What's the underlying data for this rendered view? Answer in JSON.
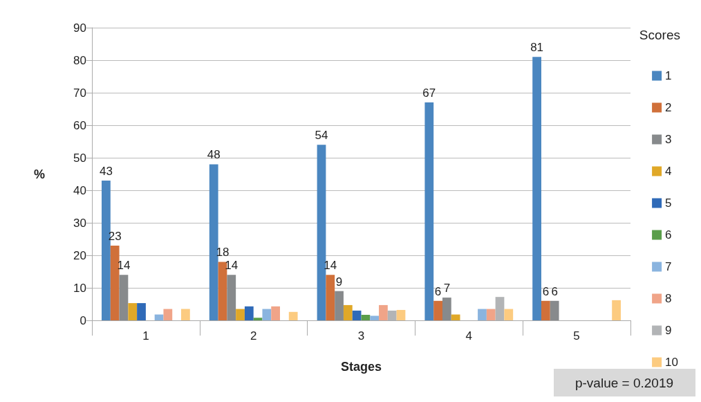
{
  "chart_data": {
    "type": "bar",
    "xlabel": "Stages",
    "ylabel": "%",
    "legend_title": "Scores",
    "categories": [
      "1",
      "2",
      "3",
      "4",
      "5"
    ],
    "series": [
      {
        "name": "1",
        "color": "#4a86c0",
        "values": [
          43,
          48,
          54,
          67,
          81
        ],
        "value_labels": [
          "43",
          "48",
          "54",
          "67",
          "81"
        ]
      },
      {
        "name": "2",
        "color": "#d0703a",
        "values": [
          23,
          18,
          14,
          6,
          6
        ],
        "value_labels": [
          "23",
          "18",
          "14",
          "6",
          "6"
        ]
      },
      {
        "name": "3",
        "color": "#878a8c",
        "values": [
          14,
          14,
          9,
          7,
          6
        ],
        "value_labels": [
          "14",
          "14",
          "9",
          "7",
          "6"
        ]
      },
      {
        "name": "4",
        "color": "#e0a828",
        "values": [
          5.3,
          3.5,
          4.7,
          1.8,
          null
        ]
      },
      {
        "name": "5",
        "color": "#2f6ab8",
        "values": [
          5.3,
          4.3,
          3,
          null,
          null
        ]
      },
      {
        "name": "6",
        "color": "#5a9e4a",
        "values": [
          null,
          0.8,
          1.7,
          null,
          null
        ]
      },
      {
        "name": "7",
        "color": "#8ab4df",
        "values": [
          1.8,
          3.5,
          1.4,
          3.5,
          null
        ]
      },
      {
        "name": "8",
        "color": "#f0a488",
        "values": [
          3.5,
          4.3,
          4.7,
          3.5,
          null
        ]
      },
      {
        "name": "9",
        "color": "#b2b4b6",
        "values": [
          null,
          null,
          3,
          7.2,
          null
        ]
      },
      {
        "name": "10",
        "color": "#fccb80",
        "values": [
          3.5,
          2.6,
          3.2,
          3.5,
          6.2
        ]
      }
    ],
    "ylim": [
      0,
      90
    ],
    "yticks": [
      0,
      10,
      20,
      30,
      40,
      50,
      60,
      70,
      80,
      90
    ],
    "grid": "y",
    "legend": "right",
    "annotations": [
      "p-value = 0.2019"
    ]
  }
}
